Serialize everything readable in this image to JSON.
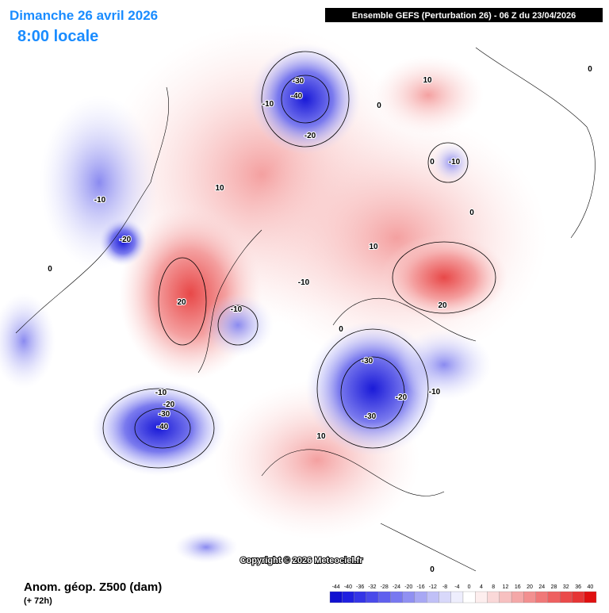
{
  "header": {
    "date": "Dimanche 26 avril 2026",
    "time": "8:00 locale",
    "model": "Ensemble GEFS  (Perturbation 26)  -  06 Z du 23/04/2026"
  },
  "contour_labels": [
    -30,
    -40,
    -10,
    -20,
    10,
    0,
    0,
    -10,
    0,
    10,
    -10,
    -20,
    0,
    -10,
    20,
    -10,
    10,
    20,
    0,
    -30,
    -20,
    -10,
    -30,
    10,
    -10,
    -20,
    -30,
    -40,
    0,
    0
  ],
  "copyright": "Copyright © 2026 Meteociel.fr",
  "footer": {
    "variable": "Anom. géop. Z500 (dam)",
    "lead": "(+ 72h)"
  },
  "legend": {
    "ticks": [
      -44,
      -40,
      -36,
      -32,
      -28,
      -24,
      -20,
      -16,
      -12,
      -8,
      -4,
      0,
      4,
      8,
      12,
      16,
      20,
      24,
      28,
      32,
      36,
      40
    ],
    "colors": [
      "#1010d0",
      "#2020e0",
      "#3535e6",
      "#4a4aea",
      "#6060ee",
      "#7878f0",
      "#9090f2",
      "#a8a8f4",
      "#c0c0f7",
      "#d8d8fa",
      "#eeeefd",
      "#ffffff",
      "#fdeeee",
      "#fad8d8",
      "#f7c0c0",
      "#f4a8a8",
      "#f29090",
      "#f07878",
      "#ee6060",
      "#ea4a4a",
      "#e63535",
      "#e01010"
    ]
  }
}
